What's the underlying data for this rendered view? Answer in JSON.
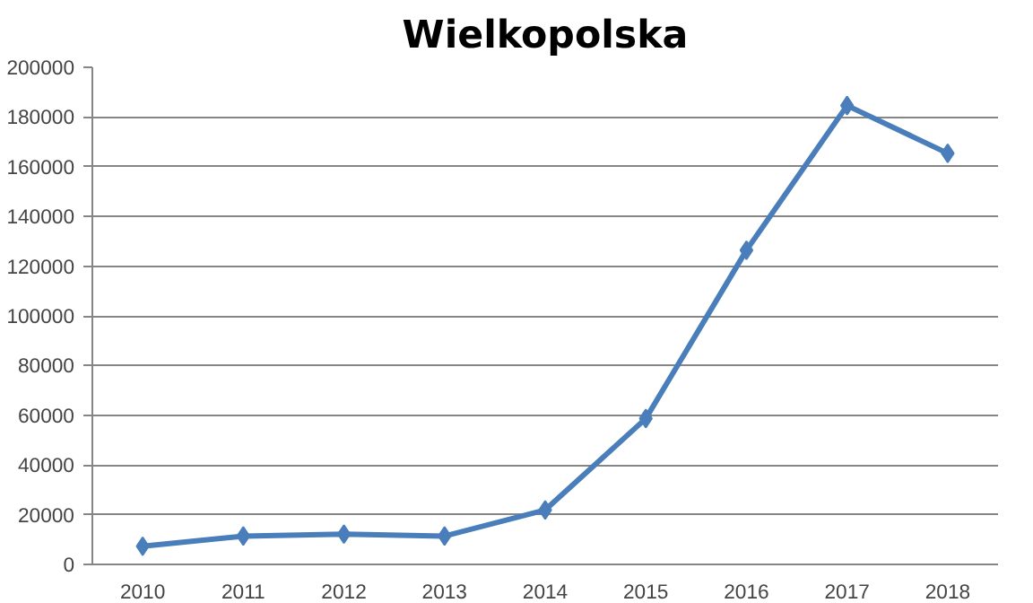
{
  "chart_data": {
    "type": "line",
    "title": "Wielkopolska",
    "categories": [
      "2010",
      "2011",
      "2012",
      "2013",
      "2014",
      "2015",
      "2016",
      "2017",
      "2018"
    ],
    "series": [
      {
        "color": "#4a7ebb",
        "values": [
          7300,
          11400,
          12200,
          11400,
          21900,
          58700,
          126400,
          184600,
          165400
        ]
      }
    ],
    "ylim": [
      0,
      200000
    ],
    "yticks": [
      0,
      20000,
      40000,
      60000,
      80000,
      100000,
      120000,
      140000,
      160000,
      180000,
      200000
    ],
    "grid": "y",
    "marker": "diamond",
    "line_style": "solid"
  }
}
